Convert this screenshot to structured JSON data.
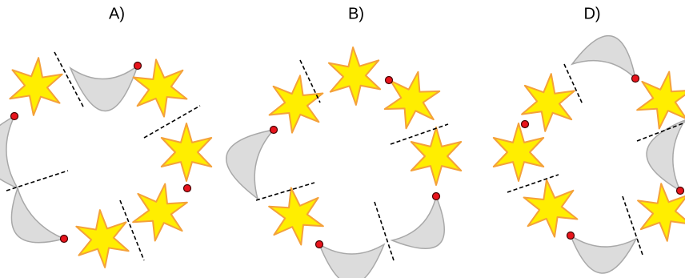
{
  "panels": [
    {
      "label": "A)"
    },
    {
      "label": "B)"
    },
    {
      "label": "D)"
    }
  ]
}
